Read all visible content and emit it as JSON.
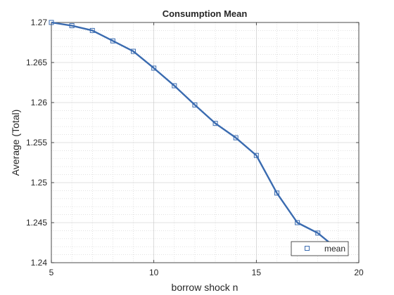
{
  "chart_data": {
    "type": "line",
    "title": "Consumption Mean",
    "xlabel": "borrow shock n",
    "ylabel": "Average (Total)",
    "xlim": [
      5,
      20
    ],
    "ylim": [
      1.24,
      1.27
    ],
    "xticks": [
      5,
      10,
      15,
      20
    ],
    "yticks": [
      1.24,
      1.245,
      1.25,
      1.255,
      1.26,
      1.265,
      1.27
    ],
    "ytick_labels": [
      "1.24",
      "1.245",
      "1.25",
      "1.255",
      "1.26",
      "1.265",
      "1.27"
    ],
    "grid": "major and minor, dotted",
    "legend_position": "bottom-right",
    "series": [
      {
        "name": "mean",
        "color": "#3a6bb0",
        "marker": "square",
        "x": [
          5,
          6,
          7,
          8,
          9,
          10,
          11,
          12,
          13,
          14,
          15,
          16,
          17,
          18,
          19
        ],
        "y": [
          1.27,
          1.2696,
          1.269,
          1.2677,
          1.2664,
          1.2643,
          1.2621,
          1.2597,
          1.2574,
          1.2556,
          1.2534,
          1.2487,
          1.245,
          1.2437,
          1.2416
        ]
      }
    ]
  }
}
